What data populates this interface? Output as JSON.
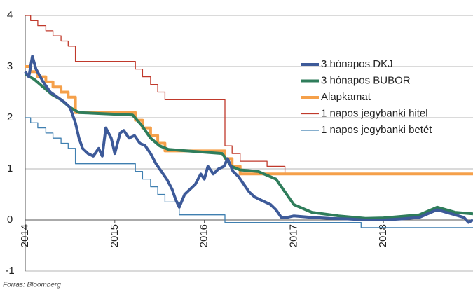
{
  "chart_data": {
    "type": "line",
    "source": "Forrás: Bloomberg",
    "xlim": [
      2014,
      2019
    ],
    "xticks": [
      2014,
      2015,
      2016,
      2017,
      2018
    ],
    "ylim": [
      -1,
      4
    ],
    "yticks": [
      -1,
      0,
      1,
      2,
      3,
      4
    ],
    "grid": true,
    "legend": "right",
    "series": [
      {
        "name": "3 hónapos DKJ",
        "color": "#3d5a99",
        "width": 4,
        "x": [
          2014.0,
          2014.04,
          2014.08,
          2014.12,
          2014.2,
          2014.28,
          2014.36,
          2014.44,
          2014.5,
          2014.56,
          2014.6,
          2014.64,
          2014.7,
          2014.76,
          2014.82,
          2014.86,
          2014.9,
          2014.96,
          2015.0,
          2015.06,
          2015.1,
          2015.16,
          2015.22,
          2015.28,
          2015.34,
          2015.4,
          2015.46,
          2015.52,
          2015.58,
          2015.64,
          2015.68,
          2015.72,
          2015.78,
          2015.84,
          2015.9,
          2015.96,
          2016.0,
          2016.04,
          2016.1,
          2016.16,
          2016.22,
          2016.26,
          2016.32,
          2016.38,
          2016.44,
          2016.5,
          2016.56,
          2016.62,
          2016.68,
          2016.74,
          2016.8,
          2016.86,
          2016.92,
          2017.0,
          2017.2,
          2017.4,
          2017.6,
          2017.8,
          2018.0,
          2018.2,
          2018.4,
          2018.6,
          2018.7,
          2018.8,
          2018.9,
          2018.95,
          2019.0
        ],
        "values": [
          2.9,
          2.8,
          3.2,
          2.95,
          2.7,
          2.5,
          2.4,
          2.3,
          2.2,
          1.9,
          1.6,
          1.4,
          1.3,
          1.25,
          1.4,
          1.25,
          1.8,
          1.6,
          1.3,
          1.7,
          1.75,
          1.6,
          1.65,
          1.5,
          1.45,
          1.3,
          1.1,
          0.95,
          0.8,
          0.6,
          0.4,
          0.25,
          0.5,
          0.6,
          0.7,
          0.9,
          0.8,
          1.05,
          0.9,
          1.0,
          1.05,
          1.2,
          0.95,
          0.85,
          0.7,
          0.55,
          0.45,
          0.4,
          0.35,
          0.3,
          0.2,
          0.05,
          0.05,
          0.08,
          0.05,
          0.03,
          0.02,
          0.0,
          0.0,
          0.02,
          0.05,
          0.2,
          0.15,
          0.1,
          0.05,
          -0.05,
          0.0
        ]
      },
      {
        "name": "3 hónapos BUBOR",
        "color": "#2f7d5b",
        "width": 4,
        "x": [
          2014.0,
          2014.1,
          2014.2,
          2014.3,
          2014.4,
          2014.5,
          2014.6,
          2015.2,
          2015.3,
          2015.4,
          2015.5,
          2015.6,
          2016.2,
          2016.3,
          2016.4,
          2016.6,
          2016.8,
          2016.9,
          2017.0,
          2017.2,
          2017.5,
          2017.8,
          2018.0,
          2018.4,
          2018.6,
          2018.7,
          2018.8,
          2019.0
        ],
        "values": [
          2.85,
          2.75,
          2.6,
          2.45,
          2.35,
          2.2,
          2.1,
          2.05,
          1.85,
          1.6,
          1.45,
          1.38,
          1.3,
          1.05,
          0.98,
          0.95,
          0.8,
          0.55,
          0.3,
          0.15,
          0.08,
          0.03,
          0.04,
          0.1,
          0.25,
          0.2,
          0.15,
          0.12
        ]
      },
      {
        "name": "Alapkamat",
        "color": "#f5a04a",
        "width": 4,
        "x": [
          2014,
          2014.06,
          2014.06,
          2014.14,
          2014.14,
          2014.23,
          2014.23,
          2014.31,
          2014.31,
          2014.4,
          2014.4,
          2014.48,
          2014.48,
          2014.56,
          2014.56,
          2015.23,
          2015.23,
          2015.31,
          2015.31,
          2015.4,
          2015.4,
          2015.48,
          2015.48,
          2015.56,
          2015.56,
          2016.23,
          2016.23,
          2016.31,
          2016.31,
          2016.4,
          2016.4,
          2019
        ],
        "values": [
          3,
          3,
          2.9,
          2.9,
          2.8,
          2.8,
          2.7,
          2.7,
          2.6,
          2.6,
          2.5,
          2.5,
          2.4,
          2.4,
          2.1,
          2.1,
          1.95,
          1.95,
          1.8,
          1.8,
          1.65,
          1.65,
          1.5,
          1.5,
          1.35,
          1.35,
          1.2,
          1.2,
          1.05,
          1.05,
          0.9,
          0.9
        ]
      },
      {
        "name": "1 napos jegybanki hitel",
        "color": "#c0392b",
        "width": 1.3,
        "x": [
          2014,
          2014.06,
          2014.06,
          2014.14,
          2014.14,
          2014.23,
          2014.23,
          2014.31,
          2014.31,
          2014.4,
          2014.4,
          2014.48,
          2014.48,
          2014.56,
          2014.56,
          2015.23,
          2015.23,
          2015.31,
          2015.31,
          2015.4,
          2015.4,
          2015.48,
          2015.48,
          2015.56,
          2015.56,
          2016.23,
          2016.23,
          2016.31,
          2016.31,
          2016.4,
          2016.4,
          2016.7,
          2016.7,
          2016.9,
          2016.9,
          2019
        ],
        "values": [
          4,
          4,
          3.9,
          3.9,
          3.8,
          3.8,
          3.7,
          3.7,
          3.6,
          3.6,
          3.5,
          3.5,
          3.4,
          3.4,
          3.1,
          3.1,
          2.95,
          2.95,
          2.8,
          2.8,
          2.65,
          2.65,
          2.5,
          2.5,
          2.35,
          2.35,
          1.45,
          1.45,
          1.3,
          1.3,
          1.15,
          1.15,
          1.05,
          1.05,
          0.9,
          0.9
        ]
      },
      {
        "name": "1 napos jegybanki betét",
        "color": "#3f7fb0",
        "width": 1.3,
        "x": [
          2014,
          2014.06,
          2014.06,
          2014.14,
          2014.14,
          2014.23,
          2014.23,
          2014.31,
          2014.31,
          2014.4,
          2014.4,
          2014.48,
          2014.48,
          2014.56,
          2014.56,
          2015.23,
          2015.23,
          2015.31,
          2015.31,
          2015.4,
          2015.4,
          2015.48,
          2015.48,
          2015.56,
          2015.56,
          2015.72,
          2015.72,
          2016.23,
          2016.23,
          2017.75,
          2017.75,
          2019
        ],
        "values": [
          2,
          2,
          1.9,
          1.9,
          1.8,
          1.8,
          1.7,
          1.7,
          1.6,
          1.6,
          1.5,
          1.5,
          1.4,
          1.4,
          1.1,
          1.1,
          0.95,
          0.95,
          0.8,
          0.8,
          0.65,
          0.65,
          0.5,
          0.5,
          0.35,
          0.35,
          0.1,
          0.1,
          -0.05,
          -0.05,
          -0.15,
          -0.15
        ]
      }
    ]
  }
}
